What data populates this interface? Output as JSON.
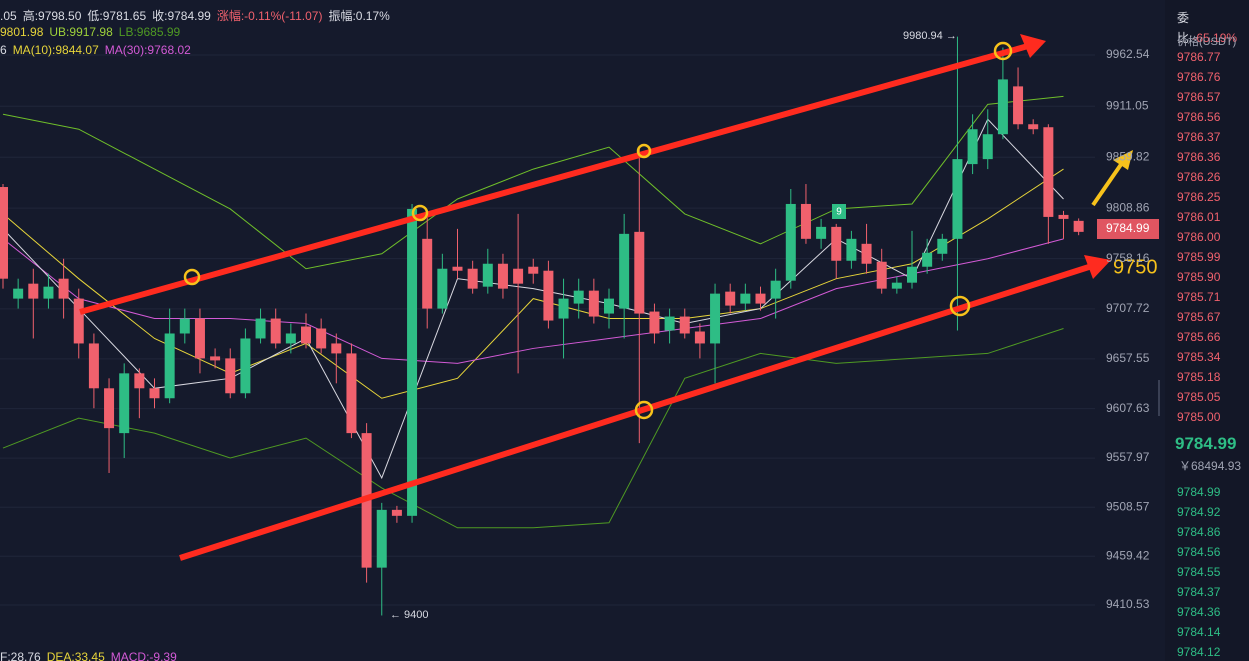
{
  "header": {
    "line1": [
      ".05",
      "高:9798.50",
      "低:9781.65",
      "收:9784.99",
      "涨幅:-0.11%(-11.07)",
      "振幅:0.17%"
    ],
    "line2": [
      "9801.98",
      "UB:9917.98",
      "LB:9685.99"
    ],
    "line3": [
      "6",
      "MA(10):9844.07",
      "MA(30):9768.02"
    ],
    "footer": [
      "F:28.76",
      "DEA:33.45",
      "MACD:-9.39"
    ]
  },
  "chart_data": {
    "type": "candlestick",
    "up_color": "#2ebd85",
    "down_color": "#f0616d",
    "grid": true,
    "ylim": [
      9354.3,
      10017.7
    ],
    "yticks": [
      9962.54,
      9911.05,
      9859.82,
      9808.86,
      9758.16,
      9707.72,
      9657.55,
      9607.63,
      9557.97,
      9508.57,
      9459.42,
      9410.53
    ],
    "open": [
      9830,
      9718,
      9733,
      9718,
      9738,
      9718,
      9673,
      9628,
      9583,
      9643,
      9628,
      9618,
      9683,
      9698,
      9660,
      9658,
      9623,
      9678,
      9698,
      9673,
      9690,
      9688,
      9673,
      9663,
      9583,
      9448,
      9506,
      9500,
      9778,
      9708,
      9750,
      9748,
      9730,
      9753,
      9748,
      9750,
      9746,
      9698,
      9713,
      9726,
      9703,
      9708,
      9785,
      9705,
      9686,
      9700,
      9685,
      9673,
      9725,
      9713,
      9723,
      9718,
      9736,
      9813,
      9778,
      9790,
      9756,
      9773,
      9755,
      9728,
      9734,
      9750,
      9763,
      9778,
      9853,
      9858,
      9883,
      9931,
      9893,
      9890,
      9802,
      9796.05
    ],
    "high": [
      9833,
      9738,
      9748,
      9743,
      9758,
      9728,
      9683,
      9638,
      9653,
      9648,
      9638,
      9708,
      9708,
      9708,
      9668,
      9668,
      9688,
      9708,
      9708,
      9693,
      9703,
      9698,
      9683,
      9673,
      9593,
      9513,
      9510,
      9813,
      9803,
      9763,
      9788,
      9756,
      9768,
      9763,
      9803,
      9758,
      9756,
      9738,
      9738,
      9738,
      9728,
      9803,
      9868,
      9713,
      9708,
      9708,
      9693,
      9733,
      9733,
      9733,
      9730,
      9748,
      9828,
      9833,
      9798,
      9793,
      9786,
      9793,
      9768,
      9740,
      9786,
      9778,
      9783,
      9980.94,
      9903,
      9908,
      9970,
      9950,
      9898,
      9893,
      9806,
      9798.5
    ],
    "low": [
      9728,
      9708,
      9678,
      9708,
      9698,
      9658,
      9608,
      9543,
      9558,
      9598,
      9608,
      9613,
      9673,
      9643,
      9648,
      9618,
      9618,
      9673,
      9668,
      9663,
      9668,
      9663,
      9633,
      9578,
      9433,
      9400,
      9493,
      9493,
      9688,
      9703,
      9738,
      9723,
      9723,
      9718,
      9643,
      9733,
      9688,
      9658,
      9698,
      9693,
      9688,
      9678,
      9573,
      9673,
      9673,
      9678,
      9658,
      9633,
      9703,
      9706,
      9706,
      9698,
      9728,
      9773,
      9768,
      9738,
      9748,
      9743,
      9723,
      9723,
      9728,
      9743,
      9756,
      9686,
      9843,
      9848,
      9878,
      9888,
      9883,
      9773,
      9778,
      9781.65
    ],
    "close": [
      9738,
      9728,
      9718,
      9730,
      9718,
      9673,
      9628,
      9588,
      9643,
      9628,
      9618,
      9683,
      9698,
      9658,
      9656,
      9623,
      9678,
      9698,
      9673,
      9683,
      9673,
      9668,
      9663,
      9583,
      9448,
      9506,
      9500,
      9808,
      9708,
      9748,
      9746,
      9728,
      9753,
      9728,
      9733,
      9743,
      9696,
      9718,
      9726,
      9700,
      9718,
      9783,
      9703,
      9683,
      9700,
      9683,
      9673,
      9723,
      9711,
      9723,
      9713,
      9736,
      9813,
      9778,
      9790,
      9756,
      9778,
      9753,
      9728,
      9734,
      9750,
      9764,
      9778,
      9858,
      9888,
      9883,
      9938,
      9893,
      9888,
      9800,
      9798,
      9784.99
    ],
    "series": [
      {
        "color": "#6fbf2a",
        "x": [
          0,
          5,
          10,
          15,
          20,
          25,
          30,
          35,
          40,
          45,
          50,
          55,
          60,
          65,
          70
        ],
        "values": [
          9903,
          9888,
          9848,
          9808,
          9748,
          9763,
          9818,
          9848,
          9870,
          9803,
          9773,
          9808,
          9813,
          9913,
          9921
        ]
      },
      {
        "color": "#4f9a23",
        "x": [
          0,
          5,
          10,
          15,
          20,
          25,
          30,
          35,
          40,
          45,
          50,
          55,
          60,
          65,
          70
        ],
        "values": [
          9568,
          9598,
          9583,
          9558,
          9578,
          9528,
          9488,
          9488,
          9493,
          9638,
          9663,
          9653,
          9658,
          9663,
          9688
        ]
      },
      {
        "color": "#e6d43a",
        "x": [
          0,
          5,
          10,
          15,
          20,
          25,
          30,
          35,
          40,
          45,
          50,
          55,
          60,
          65,
          70
        ],
        "values": [
          9803,
          9738,
          9678,
          9643,
          9673,
          9618,
          9638,
          9718,
          9698,
          9698,
          9708,
          9738,
          9753,
          9798,
          9848
        ]
      },
      {
        "color": "#d35ad6",
        "x": [
          0,
          5,
          10,
          15,
          20,
          25,
          30,
          35,
          40,
          45,
          50,
          55,
          60,
          65,
          70
        ],
        "values": [
          9778,
          9718,
          9698,
          9698,
          9693,
          9658,
          9653,
          9668,
          9678,
          9688,
          9698,
          9728,
          9743,
          9758,
          9778
        ]
      },
      {
        "color": "#d8d8e0",
        "x": [
          0,
          5,
          10,
          15,
          20,
          25,
          30,
          35,
          40,
          45,
          50,
          55,
          60,
          65,
          70
        ],
        "values": [
          9788,
          9708,
          9628,
          9638,
          9678,
          9538,
          9738,
          9728,
          9713,
          9693,
          9708,
          9778,
          9738,
          9898,
          9818
        ]
      }
    ],
    "annotations": [
      "9980.94 →",
      "← 9400",
      "9750",
      "9"
    ]
  },
  "order_book": {
    "ratio_label": "委比:",
    "ratio": "-65.19%",
    "column": "价格(USDT)",
    "asks": [
      "9786.77",
      "9786.76",
      "9786.57",
      "9786.56",
      "9786.37",
      "9786.36",
      "9786.26",
      "9786.25",
      "9786.01",
      "9786.00",
      "9785.99",
      "9785.90",
      "9785.71",
      "9785.67",
      "9785.66",
      "9785.34",
      "9785.18",
      "9785.05",
      "9785.00"
    ],
    "last": "9784.99",
    "last_cny": "￥68494.93",
    "bids": [
      "9784.99",
      "9784.92",
      "9784.86",
      "9784.56",
      "9784.55",
      "9784.37",
      "9784.36",
      "9784.14",
      "9784.12"
    ]
  }
}
